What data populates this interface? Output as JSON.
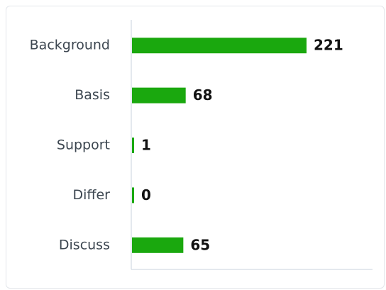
{
  "chart_data": {
    "type": "bar",
    "orientation": "horizontal",
    "categories": [
      "Background",
      "Basis",
      "Support",
      "Differ",
      "Discuss"
    ],
    "values": [
      221,
      68,
      1,
      0,
      65
    ],
    "color": "#1aa80e"
  }
}
